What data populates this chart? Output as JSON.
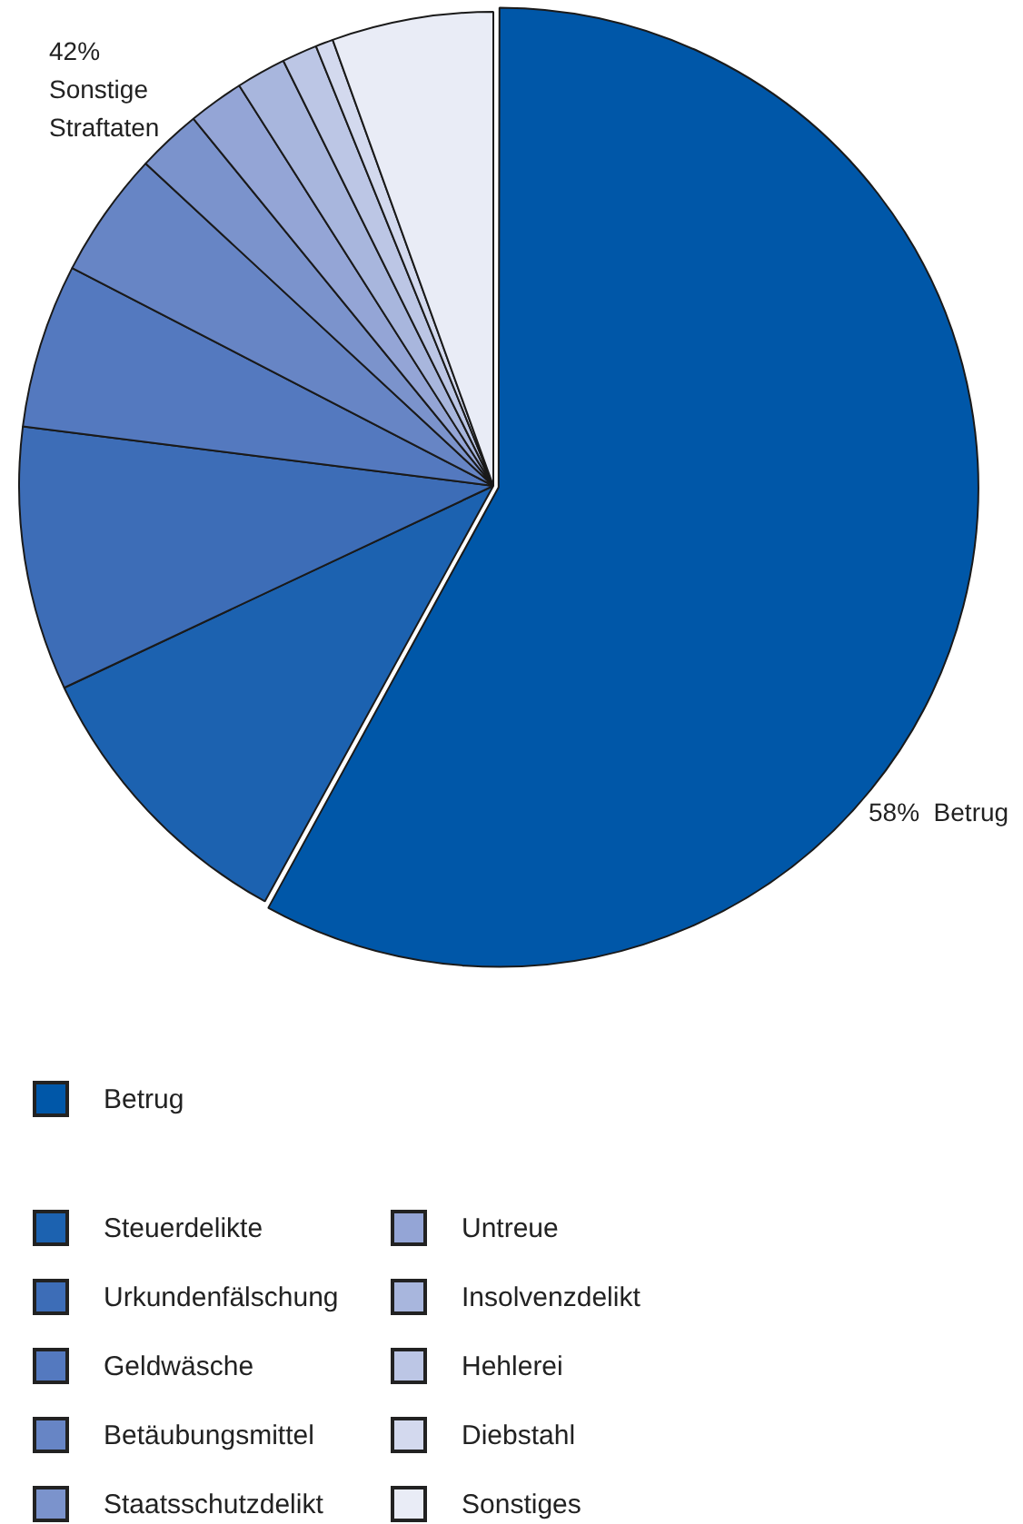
{
  "chart_data": {
    "type": "pie",
    "categories": [
      "Betrug",
      "Steuerdelikte",
      "Urkundenfälschung",
      "Geldwäsche",
      "Betäubungsmittel",
      "Staatsschutzdelikt",
      "Untreue",
      "Insolvenzdelikt",
      "Hehlerei",
      "Diebstahl",
      "Sonstiges"
    ],
    "values": [
      58,
      10,
      9,
      5.6,
      4.3,
      2.2,
      1.9,
      1.7,
      1.2,
      0.6,
      5.5
    ],
    "colors": [
      "#0057a8",
      "#1c62b0",
      "#3d6db7",
      "#5479bf",
      "#6785c5",
      "#7b93cc",
      "#94a5d6",
      "#a8b6dd",
      "#bcc6e5",
      "#d3d9ee",
      "#e9ecf6"
    ],
    "annotations": [
      "42%\nSonstige\nStraftaten",
      "58%  Betrug"
    ],
    "legend": "bottom"
  }
}
